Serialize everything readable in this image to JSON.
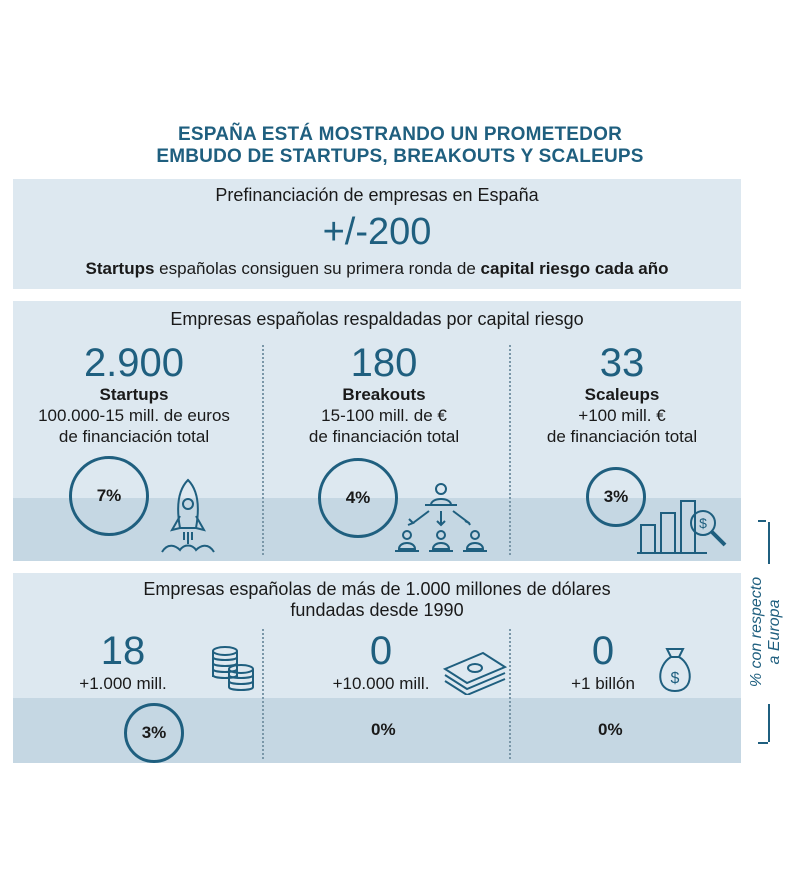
{
  "title_line1": "ESPAÑA ESTÁ MOSTRANDO UN PROMETEDOR",
  "title_line2": "EMBUDO DE STARTUPS, BREAKOUTS Y SCALEUPS",
  "prefinance": {
    "heading": "Prefinanciación de empresas en España",
    "value": "+/-200",
    "sentence_b1": "Startups",
    "sentence_t1": " españolas consiguen su primera ronda de ",
    "sentence_b2": "capital riesgo cada año"
  },
  "vc_backed": {
    "heading": "Empresas españolas respaldadas por capital riesgo",
    "columns": [
      {
        "value": "2.900",
        "label": "Startups",
        "line1": "100.000-15 mill. de euros",
        "line2": "de financiación total",
        "pct": "7%",
        "icon": "rocket-icon"
      },
      {
        "value": "180",
        "label": "Breakouts",
        "line1": "15-100 mill. de €",
        "line2": "de financiación total",
        "pct": "4%",
        "icon": "team-hierarchy-icon"
      },
      {
        "value": "33",
        "label": "Scaleups",
        "line1": "+100 mill. €",
        "line2": "de financiación total",
        "pct": "3%",
        "icon": "growth-chart-icon"
      }
    ]
  },
  "billion": {
    "heading_line1": "Empresas españolas de más de 1.000 millones de dólares",
    "heading_line2": "fundadas desde 1990",
    "columns": [
      {
        "value": "18",
        "sub": "+1.000 mill.",
        "pct": "3%",
        "icon": "coin-stacks-icon"
      },
      {
        "value": "0",
        "sub": "+10.000 mill.",
        "pct": "0%",
        "icon": "banknotes-icon"
      },
      {
        "value": "0",
        "sub": "+1 billón",
        "pct": "0%",
        "icon": "money-bag-icon"
      }
    ]
  },
  "side_label_line1": "% con respecto",
  "side_label_line2": "a Europa",
  "colors": {
    "accent": "#1f5f7f",
    "panel": "#dde8f0",
    "band": "#c5d7e3"
  }
}
